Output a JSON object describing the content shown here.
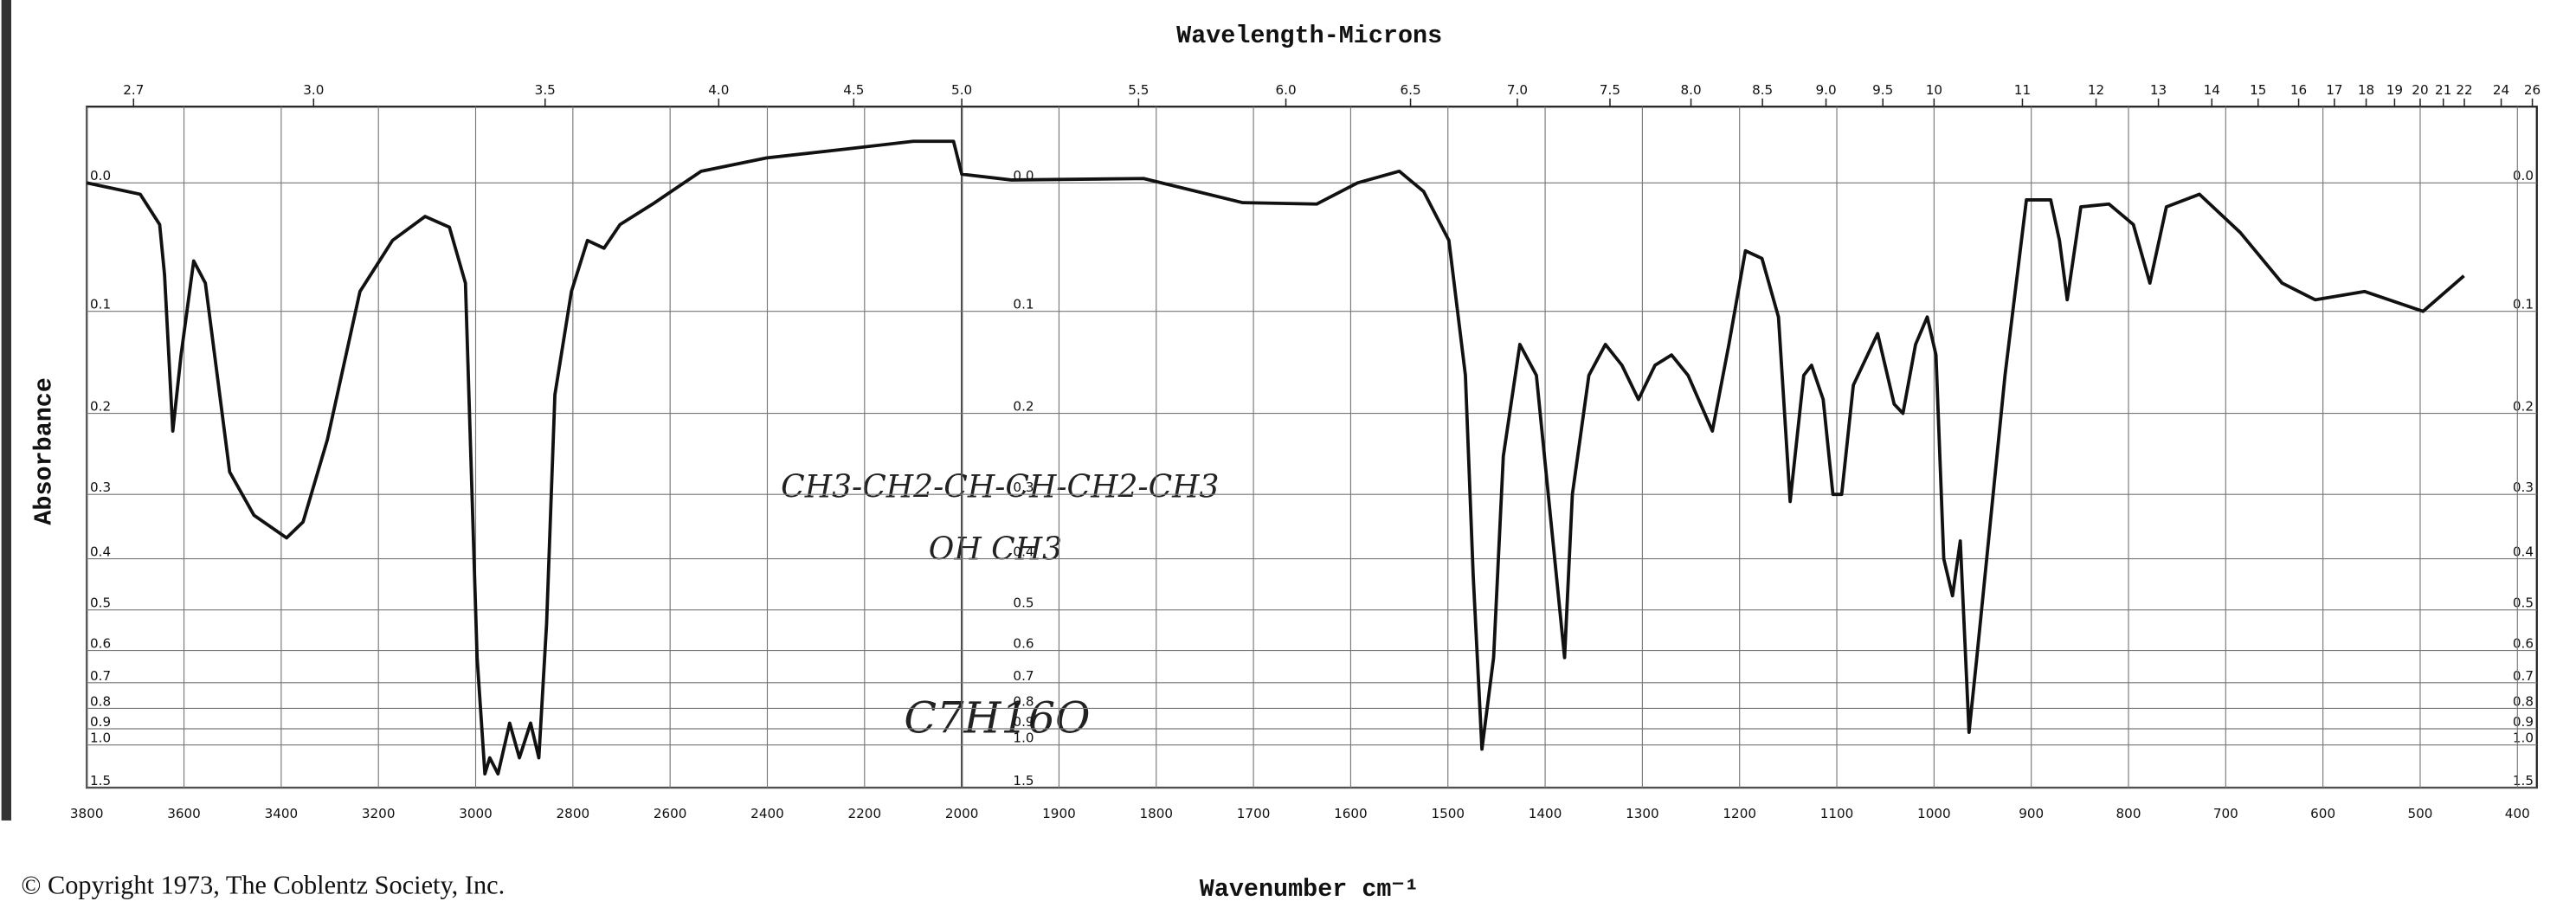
{
  "chart_data": {
    "type": "line",
    "title": "Wavelength-Microns",
    "xlabel": "Wavenumber cm⁻¹",
    "ylabel": "Absorbance",
    "color": "#111111",
    "grid": true,
    "xlim": [
      3800,
      380
    ],
    "xbreak": 2000,
    "ylim": [
      -0.05,
      1.5
    ],
    "yscale": "absorbance",
    "xticks": [
      3800,
      3600,
      3400,
      3200,
      3000,
      2800,
      2600,
      2400,
      2200,
      2000,
      1900,
      1800,
      1700,
      1600,
      1500,
      1400,
      1300,
      1200,
      1100,
      1000,
      900,
      800,
      700,
      600,
      500,
      400
    ],
    "x2ticks": [
      2.7,
      {
        "value": 3,
        "label": "3.0"
      },
      3.5,
      {
        "value": 4,
        "label": "4.0"
      },
      4.5,
      {
        "value": 5,
        "label": "5.0"
      },
      5.5,
      {
        "value": 6,
        "label": "6.0"
      },
      6.5,
      {
        "value": 7,
        "label": "7.0"
      },
      7.5,
      {
        "value": 8,
        "label": "8.0"
      },
      8.5,
      {
        "value": 9,
        "label": "9.0"
      },
      9.5,
      10,
      11,
      12,
      13,
      14,
      15,
      16,
      17,
      18,
      19,
      20,
      21,
      22,
      24,
      26
    ],
    "yticks": [
      {
        "value": 0,
        "label": "0.0"
      },
      0.1,
      0.2,
      0.3,
      0.4,
      0.5,
      0.6,
      0.7,
      0.8,
      0.9,
      {
        "value": 1,
        "label": "1.0"
      },
      1.5
    ],
    "x": [
      3800,
      3690,
      3650,
      3640,
      3623,
      3606,
      3580,
      3556,
      3506,
      3456,
      3389,
      3355,
      3305,
      3238,
      3171,
      3104,
      3054,
      3021,
      2997,
      2981,
      2971,
      2954,
      2930,
      2910,
      2887,
      2870,
      2854,
      2837,
      2803,
      2770,
      2736,
      2703,
      2636,
      2536,
      2402,
      2235,
      2100,
      2017,
      2000,
      1949,
      1813,
      1711,
      1635,
      1593,
      1550,
      1525,
      1499,
      1482,
      1474,
      1465,
      1453,
      1443,
      1426,
      1409,
      1392,
      1380,
      1372,
      1355,
      1338,
      1321,
      1304,
      1287,
      1270,
      1253,
      1228,
      1211,
      1194,
      1177,
      1160,
      1148,
      1134,
      1126,
      1114,
      1104,
      1095,
      1083,
      1058,
      1041,
      1032,
      1019,
      1007,
      998,
      990,
      981,
      973,
      964,
      956,
      944,
      927,
      905,
      880,
      871,
      863,
      849,
      820,
      795,
      778,
      761,
      727,
      685,
      642,
      608,
      557,
      497,
      455
    ],
    "values": [
      0.0,
      0.008,
      0.03,
      0.069,
      0.22,
      0.14,
      0.058,
      0.076,
      0.27,
      0.33,
      0.365,
      0.34,
      0.23,
      0.083,
      0.042,
      0.024,
      0.032,
      0.076,
      0.62,
      1.27,
      1.1,
      1.27,
      0.87,
      1.1,
      0.87,
      1.1,
      0.53,
      0.18,
      0.083,
      0.042,
      0.048,
      0.03,
      0.015,
      -0.008,
      -0.017,
      -0.023,
      -0.028,
      -0.028,
      -0.006,
      -0.002,
      -0.003,
      0.014,
      0.015,
      0.0,
      -0.008,
      0.006,
      0.042,
      0.16,
      0.43,
      1.03,
      0.62,
      0.25,
      0.13,
      0.16,
      0.37,
      0.62,
      0.3,
      0.16,
      0.13,
      0.15,
      0.185,
      0.15,
      0.14,
      0.16,
      0.22,
      0.13,
      0.05,
      0.056,
      0.105,
      0.31,
      0.16,
      0.15,
      0.185,
      0.3,
      0.3,
      0.17,
      0.12,
      0.19,
      0.2,
      0.13,
      0.105,
      0.14,
      0.4,
      0.47,
      0.37,
      0.92,
      0.62,
      0.37,
      0.16,
      0.012,
      0.012,
      0.042,
      0.09,
      0.017,
      0.015,
      0.03,
      0.076,
      0.017,
      0.008,
      0.036,
      0.076,
      0.09,
      0.083,
      0.1,
      0.07
    ],
    "annotations": [
      "CH3-CH2-CH-CH-CH2-CH3",
      "OH   CH3",
      "C7H16O",
      "© Copyright 1973, The Coblentz Society, Inc."
    ]
  }
}
